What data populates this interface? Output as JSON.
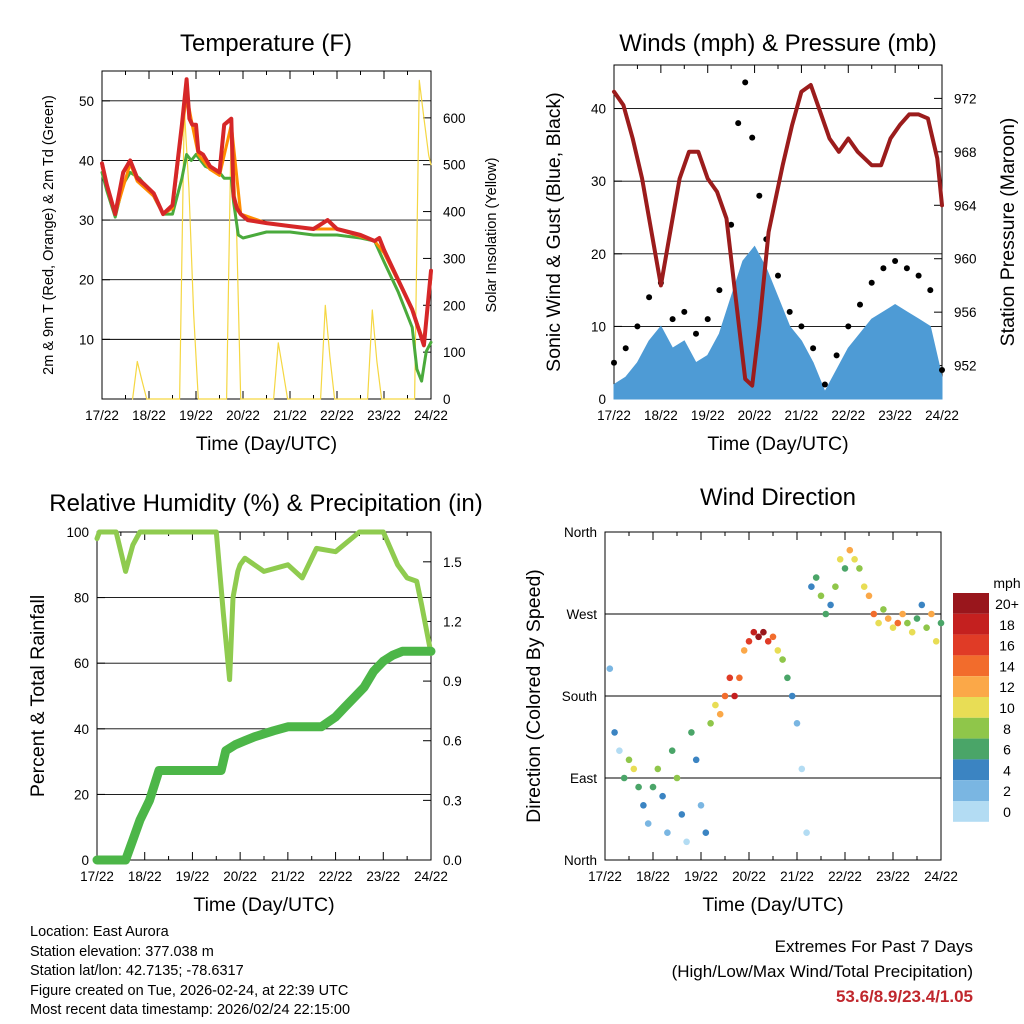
{
  "colors": {
    "temp_2m": "#d62728",
    "temp_9m": "#ff8c00",
    "dewpoint": "#4aaa3c",
    "solar": "#f5d742",
    "wind": "#4e9bd5",
    "gust": "#000000",
    "pressure": "#9b1c1c",
    "rh": "#8fcb4f",
    "precip": "#4cb648",
    "extremes": "#c0272d"
  },
  "chart_data": [
    {
      "id": "temperature",
      "type": "line",
      "title": "Temperature (F)",
      "xlabel": "Time (Day/UTC)",
      "ylabel": "2m & 9m T (Red, Orange) & 2m Td (Green)",
      "y2label": "Solar Insolation (Yellow)",
      "x_ticks": [
        "17/22",
        "18/22",
        "19/22",
        "20/22",
        "21/22",
        "22/22",
        "23/22",
        "24/22"
      ],
      "xlim": [
        0,
        7
      ],
      "ylim": [
        0,
        55
      ],
      "y_ticks": [
        10,
        20,
        30,
        40,
        50
      ],
      "y2lim": [
        0,
        700
      ],
      "y2_ticks": [
        0,
        100,
        200,
        300,
        400,
        500,
        600
      ],
      "grid": true,
      "series": [
        {
          "name": "2m T",
          "color_key": "temp_2m",
          "x": [
            0,
            0.1,
            0.28,
            0.45,
            0.6,
            0.75,
            0.9,
            1.1,
            1.3,
            1.5,
            1.7,
            1.8,
            1.86,
            1.92,
            2.0,
            2.05,
            2.15,
            2.3,
            2.5,
            2.6,
            2.75,
            2.8,
            2.87,
            2.95,
            3.1,
            3.5,
            4.0,
            4.5,
            4.8,
            5.0,
            5.5,
            5.8,
            5.9,
            6.0,
            6.3,
            6.6,
            6.85,
            7.0
          ],
          "y": [
            39.5,
            36,
            31,
            38,
            40,
            37,
            36,
            34.5,
            31,
            32.5,
            46,
            53.6,
            47,
            46,
            46,
            41.5,
            41,
            39,
            38,
            46,
            47,
            34,
            32,
            31,
            30,
            29.5,
            29,
            28.5,
            30,
            28.5,
            27.5,
            26.5,
            27,
            25,
            20,
            15,
            9,
            21.5
          ]
        },
        {
          "name": "9m T",
          "color_key": "temp_9m",
          "x": [
            0,
            0.28,
            0.6,
            0.75,
            1.1,
            1.3,
            1.5,
            1.7,
            1.8,
            1.92,
            2.05,
            2.3,
            2.5,
            2.75,
            2.95,
            3.5,
            4.5,
            5.0,
            5.8,
            6.0,
            6.6,
            6.85,
            7.0
          ],
          "y": [
            39,
            31,
            39.5,
            36.5,
            34,
            31,
            32,
            45,
            51,
            46,
            41,
            38.5,
            37.5,
            46,
            31,
            29.5,
            28.5,
            28.5,
            26.5,
            24.5,
            15,
            9.5,
            20.5
          ]
        },
        {
          "name": "2m Td",
          "color_key": "dewpoint",
          "x": [
            0,
            0.1,
            0.28,
            0.45,
            0.6,
            0.8,
            1.1,
            1.3,
            1.5,
            1.7,
            1.8,
            1.9,
            2.0,
            2.2,
            2.5,
            2.6,
            2.75,
            2.8,
            2.9,
            3.0,
            3.5,
            4.0,
            4.5,
            5.0,
            5.5,
            5.8,
            6.0,
            6.3,
            6.6,
            6.7,
            6.8,
            6.9,
            7.0
          ],
          "y": [
            38,
            35,
            30.5,
            36,
            38,
            37,
            34,
            31,
            31,
            37,
            41,
            40,
            41,
            39,
            38,
            37,
            37,
            33,
            27.5,
            27,
            28,
            28,
            27.5,
            27.5,
            27,
            26.5,
            23,
            18,
            12,
            5,
            3,
            8,
            9.5
          ]
        },
        {
          "name": "Solar Insolation",
          "axis": "y2",
          "color_key": "solar",
          "x": [
            0.65,
            0.75,
            0.85,
            0.95,
            1.0,
            1.65,
            1.75,
            1.85,
            1.95,
            2.05,
            2.15,
            2.65,
            2.75,
            2.85,
            2.95,
            3.65,
            3.75,
            3.85,
            3.95,
            4.65,
            4.75,
            4.85,
            4.95,
            5.65,
            5.75,
            5.85,
            5.95,
            6.65,
            6.75,
            6.85,
            6.95,
            7.0
          ],
          "y": [
            0,
            80,
            40,
            0,
            0,
            0,
            620,
            450,
            180,
            0,
            0,
            0,
            600,
            420,
            0,
            0,
            120,
            60,
            0,
            0,
            200,
            90,
            0,
            0,
            190,
            80,
            0,
            0,
            680,
            600,
            520,
            500
          ]
        }
      ]
    },
    {
      "id": "winds",
      "type": "line",
      "title": "Winds (mph) & Pressure (mb)",
      "xlabel": "Time (Day/UTC)",
      "ylabel": "Sonic Wind & Gust (Blue, Black)",
      "y2label": "Station Pressure (Maroon)",
      "x_ticks": [
        "17/22",
        "18/22",
        "19/22",
        "20/22",
        "21/22",
        "22/22",
        "23/22",
        "24/22"
      ],
      "xlim": [
        0,
        7
      ],
      "ylim": [
        0,
        46
      ],
      "y_ticks": [
        0,
        10,
        20,
        30,
        40
      ],
      "y2lim": [
        949.5,
        974.5
      ],
      "y2_ticks": [
        952,
        956,
        960,
        964,
        968,
        972
      ],
      "grid": true,
      "series": [
        {
          "name": "Sonic Wind",
          "color_key": "wind",
          "x": [
            0,
            0.25,
            0.5,
            0.75,
            1.0,
            1.25,
            1.5,
            1.75,
            2.0,
            2.25,
            2.5,
            2.75,
            3.0,
            3.25,
            3.5,
            3.75,
            4.0,
            4.25,
            4.5,
            4.75,
            5.0,
            5.25,
            5.5,
            5.75,
            6.0,
            6.25,
            6.5,
            6.75,
            7.0
          ],
          "y": [
            2,
            3,
            5,
            8,
            10,
            7,
            8,
            5,
            6,
            9,
            14,
            19,
            21,
            18,
            14,
            10,
            8,
            5,
            1,
            4,
            7,
            9,
            11,
            12,
            13,
            12,
            11,
            10,
            3
          ]
        },
        {
          "name": "Gust",
          "type": "scatter",
          "color_key": "gust",
          "x": [
            0,
            0.25,
            0.5,
            0.75,
            1.0,
            1.25,
            1.5,
            1.75,
            2.0,
            2.25,
            2.5,
            2.65,
            2.8,
            2.95,
            3.1,
            3.25,
            3.5,
            3.75,
            4.0,
            4.25,
            4.5,
            4.75,
            5.0,
            5.25,
            5.5,
            5.75,
            6.0,
            6.25,
            6.5,
            6.75,
            7.0
          ],
          "y": [
            5,
            7,
            10,
            14,
            16,
            11,
            12,
            9,
            11,
            15,
            24,
            38,
            43.6,
            36,
            28,
            22,
            17,
            12,
            10,
            7,
            2,
            6,
            10,
            13,
            16,
            18,
            19,
            18,
            17,
            15,
            4
          ]
        },
        {
          "name": "Station Pressure",
          "axis": "y2",
          "color_key": "pressure",
          "x": [
            0,
            0.2,
            0.4,
            0.6,
            0.8,
            1.0,
            1.2,
            1.4,
            1.6,
            1.8,
            2.0,
            2.2,
            2.4,
            2.6,
            2.8,
            2.95,
            3.1,
            3.3,
            3.6,
            3.8,
            4.0,
            4.2,
            4.4,
            4.6,
            4.8,
            5.0,
            5.2,
            5.5,
            5.7,
            5.9,
            6.1,
            6.3,
            6.5,
            6.7,
            6.9,
            7.0
          ],
          "y": [
            972.5,
            971.5,
            969,
            966,
            962,
            958,
            962,
            966,
            968,
            968,
            966,
            965,
            963,
            957,
            951,
            950.5,
            955,
            962,
            967,
            970,
            972.5,
            973,
            971,
            969,
            968,
            969,
            968,
            967,
            967,
            969,
            970,
            970.8,
            970.8,
            970.5,
            967.5,
            964
          ]
        }
      ]
    },
    {
      "id": "humidity",
      "type": "line",
      "title": "Relative Humidity (%) & Precipitation (in)",
      "xlabel": "Time (Day/UTC)",
      "ylabel": "Percent & Total Rainfall",
      "x_ticks": [
        "17/22",
        "18/22",
        "19/22",
        "20/22",
        "21/22",
        "22/22",
        "23/22",
        "24/22"
      ],
      "xlim": [
        0,
        7
      ],
      "ylim": [
        0,
        100
      ],
      "y_ticks": [
        0,
        20,
        40,
        60,
        80,
        100
      ],
      "y2lim": [
        0,
        1.65
      ],
      "y2_ticks": [
        "0.0",
        "0.3",
        "0.6",
        "0.9",
        "1.2",
        "1.5"
      ],
      "grid": true,
      "series": [
        {
          "name": "Relative Humidity",
          "color_key": "rh",
          "x": [
            0,
            0.05,
            0.2,
            0.4,
            0.6,
            0.75,
            0.9,
            1.1,
            1.5,
            2.0,
            2.5,
            2.65,
            2.78,
            2.85,
            2.95,
            3.0,
            3.1,
            3.5,
            4.0,
            4.3,
            4.6,
            5.0,
            5.5,
            6.0,
            6.3,
            6.5,
            6.7,
            6.8,
            7.0
          ],
          "y": [
            98,
            100,
            100,
            100,
            88,
            96,
            100,
            100,
            100,
            100,
            100,
            75,
            55,
            80,
            88,
            90,
            92,
            88,
            90,
            86,
            95,
            94,
            100,
            100,
            90,
            86,
            85,
            78,
            63
          ]
        },
        {
          "name": "Total Precipitation",
          "axis": "y2",
          "color_key": "precip",
          "x": [
            0,
            0.6,
            0.75,
            0.9,
            1.0,
            1.1,
            1.3,
            1.5,
            2.2,
            2.6,
            2.7,
            2.9,
            3.1,
            3.3,
            3.7,
            4.0,
            4.4,
            4.7,
            5.0,
            5.2,
            5.4,
            5.6,
            5.8,
            6.0,
            6.2,
            6.4,
            7.0
          ],
          "y": [
            0,
            0,
            0.1,
            0.2,
            0.25,
            0.3,
            0.45,
            0.45,
            0.45,
            0.45,
            0.55,
            0.58,
            0.6,
            0.62,
            0.65,
            0.67,
            0.67,
            0.67,
            0.72,
            0.77,
            0.82,
            0.87,
            0.95,
            1.0,
            1.03,
            1.05,
            1.05
          ]
        }
      ]
    },
    {
      "id": "direction",
      "type": "scatter",
      "title": "Wind Direction",
      "xlabel": "Time (Day/UTC)",
      "ylabel": "Direction (Colored By Speed)",
      "x_ticks": [
        "17/22",
        "18/22",
        "19/22",
        "20/22",
        "21/22",
        "22/22",
        "23/22",
        "24/22"
      ],
      "xlim": [
        0,
        7
      ],
      "ylim": [
        0,
        360
      ],
      "y_ticks": [
        0,
        90,
        180,
        270,
        360
      ],
      "y_tick_labels": [
        "North",
        "East",
        "South",
        "West",
        "North"
      ],
      "legend_title": "mph",
      "legend_labels": [
        "20+",
        "18",
        "16",
        "14",
        "12",
        "10",
        "8",
        "6",
        "4",
        "2",
        "0"
      ],
      "legend_colors": [
        "#99161c",
        "#c4201f",
        "#e03b26",
        "#f26c2c",
        "#fba848",
        "#e8dd55",
        "#8fc64a",
        "#4aa568",
        "#3b84c2",
        "#7ab6e2",
        "#b3dcf3"
      ],
      "points": [
        [
          0.1,
          210,
          2
        ],
        [
          0.2,
          140,
          4
        ],
        [
          0.3,
          120,
          1
        ],
        [
          0.4,
          90,
          6
        ],
        [
          0.5,
          110,
          8
        ],
        [
          0.6,
          100,
          10
        ],
        [
          0.7,
          80,
          6
        ],
        [
          0.8,
          60,
          4
        ],
        [
          0.9,
          40,
          2
        ],
        [
          1.0,
          80,
          6
        ],
        [
          1.1,
          100,
          8
        ],
        [
          1.2,
          70,
          4
        ],
        [
          1.3,
          30,
          2
        ],
        [
          1.4,
          120,
          6
        ],
        [
          1.5,
          90,
          8
        ],
        [
          1.6,
          50,
          4
        ],
        [
          1.7,
          20,
          1
        ],
        [
          1.8,
          140,
          6
        ],
        [
          1.9,
          110,
          4
        ],
        [
          2.0,
          60,
          2
        ],
        [
          2.1,
          30,
          4
        ],
        [
          2.2,
          150,
          8
        ],
        [
          2.3,
          170,
          10
        ],
        [
          2.4,
          160,
          12
        ],
        [
          2.5,
          180,
          14
        ],
        [
          2.6,
          200,
          16
        ],
        [
          2.7,
          180,
          18
        ],
        [
          2.8,
          200,
          14
        ],
        [
          2.9,
          230,
          12
        ],
        [
          3.0,
          240,
          16
        ],
        [
          3.1,
          250,
          18
        ],
        [
          3.2,
          245,
          20
        ],
        [
          3.3,
          250,
          20
        ],
        [
          3.4,
          240,
          16
        ],
        [
          3.5,
          245,
          14
        ],
        [
          3.6,
          230,
          10
        ],
        [
          3.7,
          220,
          8
        ],
        [
          3.8,
          200,
          6
        ],
        [
          3.9,
          180,
          4
        ],
        [
          4.0,
          150,
          2
        ],
        [
          4.1,
          100,
          1
        ],
        [
          4.2,
          30,
          1
        ],
        [
          4.3,
          300,
          4
        ],
        [
          4.4,
          310,
          6
        ],
        [
          4.5,
          290,
          8
        ],
        [
          4.6,
          270,
          6
        ],
        [
          4.7,
          280,
          4
        ],
        [
          4.8,
          300,
          8
        ],
        [
          4.9,
          330,
          10
        ],
        [
          5.0,
          320,
          6
        ],
        [
          5.1,
          340,
          12
        ],
        [
          5.2,
          330,
          10
        ],
        [
          5.3,
          320,
          8
        ],
        [
          5.4,
          300,
          10
        ],
        [
          5.5,
          290,
          12
        ],
        [
          5.6,
          270,
          14
        ],
        [
          5.7,
          260,
          10
        ],
        [
          5.8,
          275,
          8
        ],
        [
          5.9,
          265,
          12
        ],
        [
          6.0,
          255,
          10
        ],
        [
          6.1,
          260,
          14
        ],
        [
          6.2,
          270,
          12
        ],
        [
          6.3,
          260,
          8
        ],
        [
          6.4,
          250,
          10
        ],
        [
          6.5,
          265,
          6
        ],
        [
          6.6,
          280,
          4
        ],
        [
          6.7,
          255,
          8
        ],
        [
          6.8,
          270,
          12
        ],
        [
          6.9,
          240,
          10
        ],
        [
          7.0,
          260,
          6
        ]
      ]
    }
  ],
  "station_info": {
    "location": "Location: East Aurora",
    "elevation": "Station elevation: 377.038 m",
    "latlon": "Station lat/lon: 42.7135; -78.6317",
    "created": "Figure created on Tue, 2026-02-24, at 22:39 UTC",
    "latest": "Most recent data timestamp: 2026/02/24 22:15:00"
  },
  "extremes": {
    "title": "Extremes For Past 7 Days",
    "subtitle": "(High/Low/Max Wind/Total Precipitation)",
    "values": "53.6/8.9/23.4/1.05"
  }
}
